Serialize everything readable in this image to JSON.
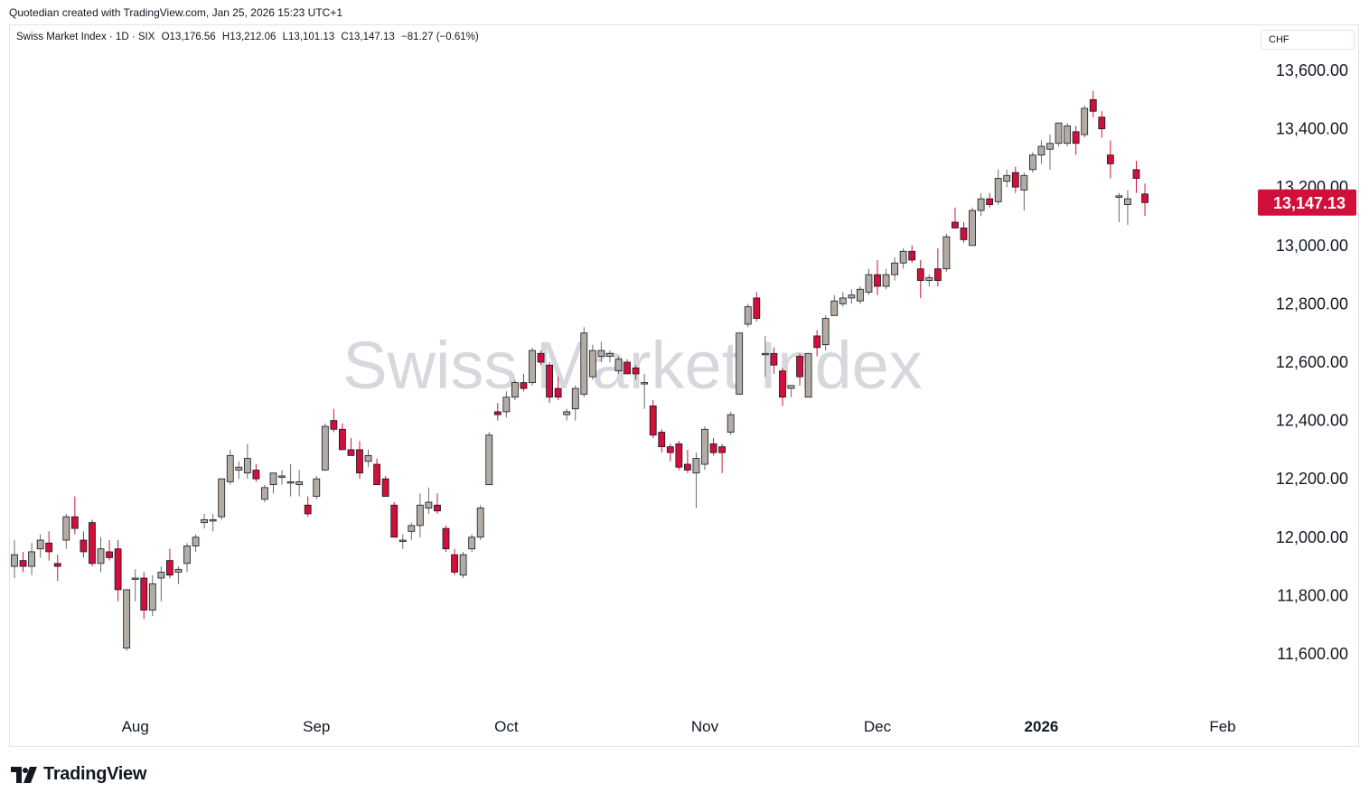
{
  "header": {
    "attribution": "Quotedian created with TradingView.com, Jan 25, 2026 15:23 UTC+1"
  },
  "legend": {
    "symbol": "Swiss Market Index · 1D · SIX",
    "open": "O13,176.56",
    "high": "H13,212.06",
    "low": "L13,101.13",
    "close": "C13,147.13",
    "change": "−81.27 (−0.61%)"
  },
  "currency": "CHF",
  "watermark": "Swiss Market Index",
  "last_price_label": "13,147.13",
  "brand": "TradingView",
  "colors": {
    "up": "#b2aca4",
    "down": "#d0103a",
    "outline": "#131722",
    "price_tag": "#d0103a"
  },
  "chart_data": {
    "type": "candlestick",
    "y_ticks": [
      "13,600.00",
      "13,400.00",
      "13,200.00",
      "13,000.00",
      "12,800.00",
      "12,600.00",
      "12,400.00",
      "12,200.00",
      "12,000.00",
      "11,800.00",
      "11,600.00"
    ],
    "x_ticks": [
      {
        "label": "Aug",
        "date": "2025-08-01",
        "bold": false
      },
      {
        "label": "Sep",
        "date": "2025-09-01",
        "bold": false
      },
      {
        "label": "Oct",
        "date": "2025-10-01",
        "bold": false
      },
      {
        "label": "Nov",
        "date": "2025-11-03",
        "bold": false
      },
      {
        "label": "Dec",
        "date": "2025-12-01",
        "bold": false
      },
      {
        "label": "2026",
        "date": "2026-01-02",
        "bold": true
      },
      {
        "label": "Feb",
        "date": "2026-02-02",
        "bold": false
      }
    ],
    "ylim": [
      11500,
      13700
    ],
    "series": [
      {
        "date": "2025-07-14",
        "o": 11900,
        "h": 11990,
        "l": 11860,
        "c": 11940
      },
      {
        "date": "2025-07-15",
        "o": 11920,
        "h": 11950,
        "l": 11880,
        "c": 11900
      },
      {
        "date": "2025-07-16",
        "o": 11900,
        "h": 11980,
        "l": 11870,
        "c": 11950
      },
      {
        "date": "2025-07-17",
        "o": 11960,
        "h": 12010,
        "l": 11930,
        "c": 11990
      },
      {
        "date": "2025-07-18",
        "o": 11980,
        "h": 12020,
        "l": 11920,
        "c": 11950
      },
      {
        "date": "2025-07-21",
        "o": 11910,
        "h": 11940,
        "l": 11850,
        "c": 11900
      },
      {
        "date": "2025-07-22",
        "o": 11990,
        "h": 12080,
        "l": 11960,
        "c": 12070
      },
      {
        "date": "2025-07-23",
        "o": 12070,
        "h": 12140,
        "l": 12010,
        "c": 12030
      },
      {
        "date": "2025-07-24",
        "o": 11990,
        "h": 12020,
        "l": 11930,
        "c": 11950
      },
      {
        "date": "2025-07-25",
        "o": 12050,
        "h": 12060,
        "l": 11900,
        "c": 11910
      },
      {
        "date": "2025-07-28",
        "o": 11910,
        "h": 12000,
        "l": 11880,
        "c": 11960
      },
      {
        "date": "2025-07-29",
        "o": 11950,
        "h": 11990,
        "l": 11920,
        "c": 11930
      },
      {
        "date": "2025-07-30",
        "o": 11960,
        "h": 11990,
        "l": 11780,
        "c": 11820
      },
      {
        "date": "2025-07-31",
        "o": 11620,
        "h": 11820,
        "l": 11610,
        "c": 11820
      },
      {
        "date": "2025-08-01",
        "o": 11860,
        "h": 11890,
        "l": 11780,
        "c": 11860
      },
      {
        "date": "2025-08-04",
        "o": 11860,
        "h": 11880,
        "l": 11720,
        "c": 11750
      },
      {
        "date": "2025-08-05",
        "o": 11750,
        "h": 11870,
        "l": 11730,
        "c": 11840
      },
      {
        "date": "2025-08-06",
        "o": 11860,
        "h": 11900,
        "l": 11780,
        "c": 11880
      },
      {
        "date": "2025-08-07",
        "o": 11920,
        "h": 11960,
        "l": 11860,
        "c": 11870
      },
      {
        "date": "2025-08-08",
        "o": 11880,
        "h": 11900,
        "l": 11840,
        "c": 11890
      },
      {
        "date": "2025-08-11",
        "o": 11910,
        "h": 11980,
        "l": 11880,
        "c": 11970
      },
      {
        "date": "2025-08-12",
        "o": 11970,
        "h": 12010,
        "l": 11950,
        "c": 12000
      },
      {
        "date": "2025-08-13",
        "o": 12050,
        "h": 12080,
        "l": 12030,
        "c": 12060
      },
      {
        "date": "2025-08-14",
        "o": 12060,
        "h": 12080,
        "l": 12020,
        "c": 12060
      },
      {
        "date": "2025-08-15",
        "o": 12070,
        "h": 12200,
        "l": 12060,
        "c": 12200
      },
      {
        "date": "2025-08-18",
        "o": 12190,
        "h": 12300,
        "l": 12180,
        "c": 12280
      },
      {
        "date": "2025-08-19",
        "o": 12230,
        "h": 12260,
        "l": 12200,
        "c": 12240
      },
      {
        "date": "2025-08-20",
        "o": 12220,
        "h": 12320,
        "l": 12200,
        "c": 12270
      },
      {
        "date": "2025-08-21",
        "o": 12230,
        "h": 12250,
        "l": 12190,
        "c": 12200
      },
      {
        "date": "2025-08-22",
        "o": 12130,
        "h": 12180,
        "l": 12120,
        "c": 12170
      },
      {
        "date": "2025-08-25",
        "o": 12180,
        "h": 12220,
        "l": 12150,
        "c": 12220
      },
      {
        "date": "2025-08-26",
        "o": 12210,
        "h": 12230,
        "l": 12180,
        "c": 12210
      },
      {
        "date": "2025-08-27",
        "o": 12190,
        "h": 12250,
        "l": 12140,
        "c": 12190
      },
      {
        "date": "2025-08-28",
        "o": 12180,
        "h": 12230,
        "l": 12140,
        "c": 12190
      },
      {
        "date": "2025-08-29",
        "o": 12110,
        "h": 12140,
        "l": 12070,
        "c": 12080
      },
      {
        "date": "2025-09-01",
        "o": 12140,
        "h": 12210,
        "l": 12130,
        "c": 12200
      },
      {
        "date": "2025-09-02",
        "o": 12230,
        "h": 12390,
        "l": 12230,
        "c": 12380
      },
      {
        "date": "2025-09-03",
        "o": 12400,
        "h": 12440,
        "l": 12360,
        "c": 12370
      },
      {
        "date": "2025-09-04",
        "o": 12370,
        "h": 12390,
        "l": 12300,
        "c": 12300
      },
      {
        "date": "2025-09-05",
        "o": 12300,
        "h": 12340,
        "l": 12280,
        "c": 12280
      },
      {
        "date": "2025-09-08",
        "o": 12300,
        "h": 12330,
        "l": 12200,
        "c": 12220
      },
      {
        "date": "2025-09-09",
        "o": 12260,
        "h": 12300,
        "l": 12240,
        "c": 12280
      },
      {
        "date": "2025-09-10",
        "o": 12250,
        "h": 12270,
        "l": 12180,
        "c": 12180
      },
      {
        "date": "2025-09-11",
        "o": 12200,
        "h": 12210,
        "l": 12140,
        "c": 12140
      },
      {
        "date": "2025-09-12",
        "o": 12110,
        "h": 12120,
        "l": 12000,
        "c": 12000
      },
      {
        "date": "2025-09-15",
        "o": 11990,
        "h": 12010,
        "l": 11960,
        "c": 11990
      },
      {
        "date": "2025-09-16",
        "o": 12020,
        "h": 12050,
        "l": 11990,
        "c": 12040
      },
      {
        "date": "2025-09-17",
        "o": 12040,
        "h": 12150,
        "l": 12000,
        "c": 12110
      },
      {
        "date": "2025-09-18",
        "o": 12100,
        "h": 12170,
        "l": 12080,
        "c": 12120
      },
      {
        "date": "2025-09-19",
        "o": 12110,
        "h": 12150,
        "l": 12080,
        "c": 12090
      },
      {
        "date": "2025-09-22",
        "o": 12030,
        "h": 12040,
        "l": 11950,
        "c": 11960
      },
      {
        "date": "2025-09-23",
        "o": 11940,
        "h": 11960,
        "l": 11870,
        "c": 11880
      },
      {
        "date": "2025-09-24",
        "o": 11870,
        "h": 11950,
        "l": 11860,
        "c": 11940
      },
      {
        "date": "2025-09-25",
        "o": 11960,
        "h": 12010,
        "l": 11950,
        "c": 12000
      },
      {
        "date": "2025-09-26",
        "o": 12000,
        "h": 12110,
        "l": 11990,
        "c": 12100
      },
      {
        "date": "2025-09-29",
        "o": 12180,
        "h": 12360,
        "l": 12180,
        "c": 12350
      },
      {
        "date": "2025-09-30",
        "o": 12430,
        "h": 12460,
        "l": 12400,
        "c": 12420
      },
      {
        "date": "2025-10-01",
        "o": 12430,
        "h": 12500,
        "l": 12410,
        "c": 12480
      },
      {
        "date": "2025-10-02",
        "o": 12480,
        "h": 12540,
        "l": 12470,
        "c": 12530
      },
      {
        "date": "2025-10-03",
        "o": 12530,
        "h": 12560,
        "l": 12500,
        "c": 12510
      },
      {
        "date": "2025-10-06",
        "o": 12530,
        "h": 12650,
        "l": 12520,
        "c": 12640
      },
      {
        "date": "2025-10-07",
        "o": 12630,
        "h": 12640,
        "l": 12590,
        "c": 12600
      },
      {
        "date": "2025-10-08",
        "o": 12590,
        "h": 12600,
        "l": 12460,
        "c": 12480
      },
      {
        "date": "2025-10-09",
        "o": 12510,
        "h": 12550,
        "l": 12470,
        "c": 12480
      },
      {
        "date": "2025-10-10",
        "o": 12420,
        "h": 12440,
        "l": 12400,
        "c": 12430
      },
      {
        "date": "2025-10-13",
        "o": 12440,
        "h": 12520,
        "l": 12400,
        "c": 12510
      },
      {
        "date": "2025-10-14",
        "o": 12490,
        "h": 12720,
        "l": 12480,
        "c": 12700
      },
      {
        "date": "2025-10-15",
        "o": 12550,
        "h": 12660,
        "l": 12540,
        "c": 12640
      },
      {
        "date": "2025-10-16",
        "o": 12620,
        "h": 12670,
        "l": 12600,
        "c": 12640
      },
      {
        "date": "2025-10-17",
        "o": 12620,
        "h": 12640,
        "l": 12600,
        "c": 12630
      },
      {
        "date": "2025-10-20",
        "o": 12570,
        "h": 12620,
        "l": 12560,
        "c": 12610
      },
      {
        "date": "2025-10-21",
        "o": 12600,
        "h": 12610,
        "l": 12560,
        "c": 12560
      },
      {
        "date": "2025-10-22",
        "o": 12580,
        "h": 12590,
        "l": 12540,
        "c": 12560
      },
      {
        "date": "2025-10-23",
        "o": 12530,
        "h": 12560,
        "l": 12440,
        "c": 12530
      },
      {
        "date": "2025-10-24",
        "o": 12450,
        "h": 12470,
        "l": 12340,
        "c": 12350
      },
      {
        "date": "2025-10-27",
        "o": 12360,
        "h": 12370,
        "l": 12290,
        "c": 12310
      },
      {
        "date": "2025-10-28",
        "o": 12310,
        "h": 12320,
        "l": 12260,
        "c": 12290
      },
      {
        "date": "2025-10-29",
        "o": 12320,
        "h": 12330,
        "l": 12230,
        "c": 12240
      },
      {
        "date": "2025-10-30",
        "o": 12250,
        "h": 12300,
        "l": 12220,
        "c": 12230
      },
      {
        "date": "2025-10-31",
        "o": 12220,
        "h": 12290,
        "l": 12100,
        "c": 12270
      },
      {
        "date": "2025-11-03",
        "o": 12250,
        "h": 12380,
        "l": 12230,
        "c": 12370
      },
      {
        "date": "2025-11-04",
        "o": 12320,
        "h": 12340,
        "l": 12280,
        "c": 12290
      },
      {
        "date": "2025-11-05",
        "o": 12310,
        "h": 12320,
        "l": 12220,
        "c": 12290
      },
      {
        "date": "2025-11-06",
        "o": 12360,
        "h": 12430,
        "l": 12350,
        "c": 12420
      },
      {
        "date": "2025-11-07",
        "o": 12490,
        "h": 12700,
        "l": 12490,
        "c": 12700
      },
      {
        "date": "2025-11-10",
        "o": 12730,
        "h": 12800,
        "l": 12720,
        "c": 12790
      },
      {
        "date": "2025-11-11",
        "o": 12820,
        "h": 12840,
        "l": 12740,
        "c": 12750
      },
      {
        "date": "2025-11-12",
        "o": 12630,
        "h": 12690,
        "l": 12550,
        "c": 12630
      },
      {
        "date": "2025-11-13",
        "o": 12630,
        "h": 12650,
        "l": 12560,
        "c": 12590
      },
      {
        "date": "2025-11-14",
        "o": 12570,
        "h": 12580,
        "l": 12450,
        "c": 12480
      },
      {
        "date": "2025-11-17",
        "o": 12510,
        "h": 12520,
        "l": 12480,
        "c": 12520
      },
      {
        "date": "2025-11-18",
        "o": 12620,
        "h": 12630,
        "l": 12520,
        "c": 12550
      },
      {
        "date": "2025-11-19",
        "o": 12480,
        "h": 12630,
        "l": 12480,
        "c": 12630
      },
      {
        "date": "2025-11-20",
        "o": 12690,
        "h": 12710,
        "l": 12620,
        "c": 12650
      },
      {
        "date": "2025-11-21",
        "o": 12660,
        "h": 12760,
        "l": 12640,
        "c": 12750
      },
      {
        "date": "2025-11-24",
        "o": 12760,
        "h": 12830,
        "l": 12760,
        "c": 12810
      },
      {
        "date": "2025-11-25",
        "o": 12800,
        "h": 12840,
        "l": 12790,
        "c": 12820
      },
      {
        "date": "2025-11-26",
        "o": 12820,
        "h": 12850,
        "l": 12800,
        "c": 12830
      },
      {
        "date": "2025-11-27",
        "o": 12810,
        "h": 12860,
        "l": 12800,
        "c": 12850
      },
      {
        "date": "2025-11-28",
        "o": 12840,
        "h": 12920,
        "l": 12830,
        "c": 12900
      },
      {
        "date": "2025-12-01",
        "o": 12900,
        "h": 12950,
        "l": 12830,
        "c": 12860
      },
      {
        "date": "2025-12-02",
        "o": 12860,
        "h": 12920,
        "l": 12850,
        "c": 12900
      },
      {
        "date": "2025-12-03",
        "o": 12900,
        "h": 12960,
        "l": 12880,
        "c": 12940
      },
      {
        "date": "2025-12-04",
        "o": 12940,
        "h": 12990,
        "l": 12920,
        "c": 12980
      },
      {
        "date": "2025-12-05",
        "o": 12980,
        "h": 13000,
        "l": 12940,
        "c": 12950
      },
      {
        "date": "2025-12-08",
        "o": 12920,
        "h": 12950,
        "l": 12820,
        "c": 12880
      },
      {
        "date": "2025-12-09",
        "o": 12880,
        "h": 12900,
        "l": 12860,
        "c": 12890
      },
      {
        "date": "2025-12-10",
        "o": 12920,
        "h": 12990,
        "l": 12860,
        "c": 12880
      },
      {
        "date": "2025-12-11",
        "o": 12920,
        "h": 13040,
        "l": 12910,
        "c": 13030
      },
      {
        "date": "2025-12-12",
        "o": 13080,
        "h": 13130,
        "l": 13060,
        "c": 13060
      },
      {
        "date": "2025-12-15",
        "o": 13060,
        "h": 13080,
        "l": 13010,
        "c": 13020
      },
      {
        "date": "2025-12-16",
        "o": 13000,
        "h": 13130,
        "l": 13000,
        "c": 13120
      },
      {
        "date": "2025-12-17",
        "o": 13120,
        "h": 13180,
        "l": 13100,
        "c": 13160
      },
      {
        "date": "2025-12-18",
        "o": 13160,
        "h": 13180,
        "l": 13130,
        "c": 13140
      },
      {
        "date": "2025-12-19",
        "o": 13150,
        "h": 13260,
        "l": 13140,
        "c": 13230
      },
      {
        "date": "2025-12-22",
        "o": 13220,
        "h": 13260,
        "l": 13200,
        "c": 13240
      },
      {
        "date": "2025-12-23",
        "o": 13250,
        "h": 13270,
        "l": 13180,
        "c": 13200
      },
      {
        "date": "2025-12-29",
        "o": 13190,
        "h": 13250,
        "l": 13120,
        "c": 13240
      },
      {
        "date": "2025-12-30",
        "o": 13260,
        "h": 13320,
        "l": 13250,
        "c": 13310
      },
      {
        "date": "2026-01-02",
        "o": 13310,
        "h": 13360,
        "l": 13280,
        "c": 13340
      },
      {
        "date": "2026-01-05",
        "o": 13330,
        "h": 13380,
        "l": 13260,
        "c": 13350
      },
      {
        "date": "2026-01-06",
        "o": 13350,
        "h": 13420,
        "l": 13340,
        "c": 13420
      },
      {
        "date": "2026-01-07",
        "o": 13350,
        "h": 13420,
        "l": 13340,
        "c": 13410
      },
      {
        "date": "2026-01-08",
        "o": 13390,
        "h": 13410,
        "l": 13310,
        "c": 13350
      },
      {
        "date": "2026-01-09",
        "o": 13380,
        "h": 13480,
        "l": 13370,
        "c": 13470
      },
      {
        "date": "2026-01-12",
        "o": 13500,
        "h": 13530,
        "l": 13440,
        "c": 13460
      },
      {
        "date": "2026-01-13",
        "o": 13440,
        "h": 13460,
        "l": 13370,
        "c": 13400
      },
      {
        "date": "2026-01-14",
        "o": 13310,
        "h": 13360,
        "l": 13230,
        "c": 13280
      },
      {
        "date": "2026-01-15",
        "o": 13170,
        "h": 13180,
        "l": 13080,
        "c": 13170
      },
      {
        "date": "2026-01-16",
        "o": 13140,
        "h": 13190,
        "l": 13070,
        "c": 13160
      },
      {
        "date": "2026-01-19",
        "o": 13260,
        "h": 13290,
        "l": 13180,
        "c": 13230
      },
      {
        "date": "2026-01-20",
        "o": 13176.56,
        "h": 13212.06,
        "l": 13101.13,
        "c": 13147.13
      }
    ],
    "last_close": 13147.13
  }
}
